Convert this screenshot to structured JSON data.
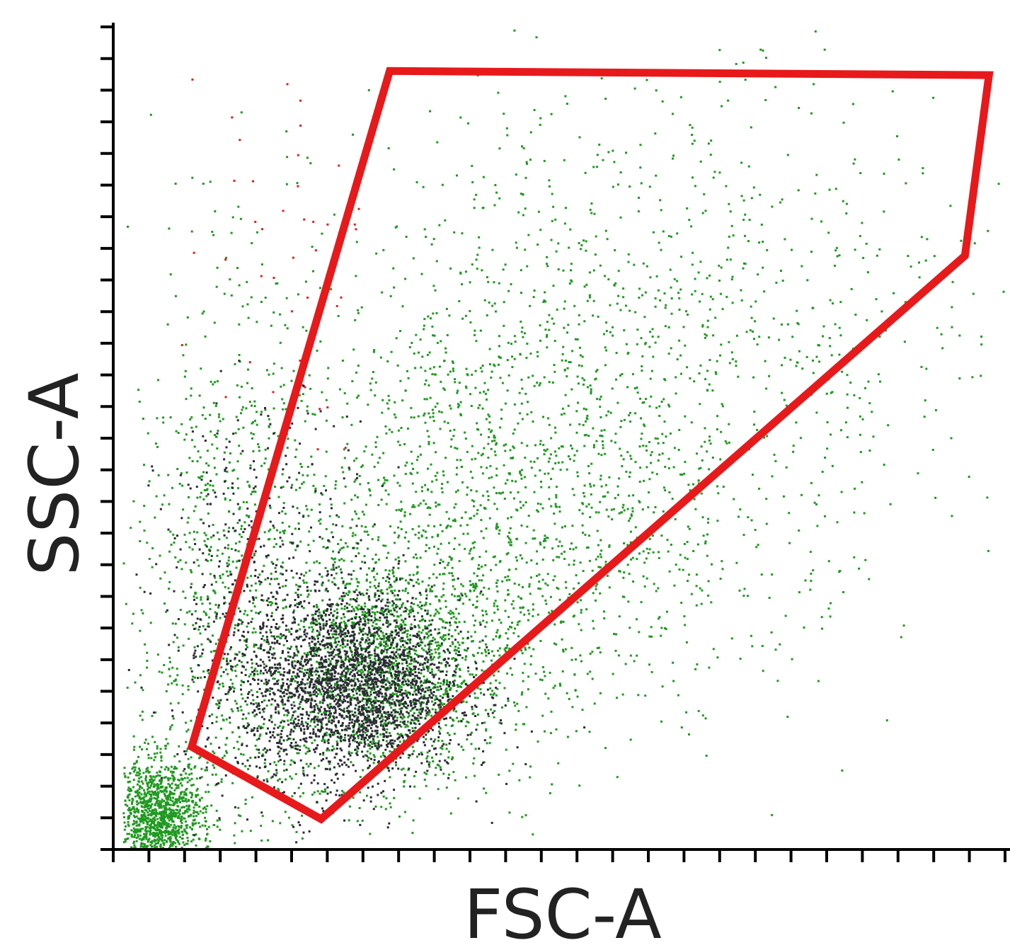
{
  "chart_data": {
    "type": "scatter",
    "title": "",
    "xlabel": "FSC-A",
    "ylabel": "SSC-A",
    "x_tick_marks": 26,
    "y_tick_marks": 27,
    "grid": false,
    "legend": "none",
    "series": [
      {
        "color": "#1f9a1f",
        "clusters": [
          {
            "cx": 0.3,
            "cy": 0.22,
            "sx": 0.07,
            "sy": 0.07,
            "n": 1700
          },
          {
            "cx": 0.42,
            "cy": 0.4,
            "sx": 0.14,
            "sy": 0.14,
            "n": 1500
          },
          {
            "cx": 0.6,
            "cy": 0.62,
            "sx": 0.18,
            "sy": 0.16,
            "n": 1000
          },
          {
            "cx": 0.05,
            "cy": 0.04,
            "sx": 0.025,
            "sy": 0.035,
            "n": 1300
          },
          {
            "cx": 0.12,
            "cy": 0.3,
            "sx": 0.05,
            "sy": 0.2,
            "n": 800
          }
        ]
      },
      {
        "color": "#2b2b33",
        "clusters": [
          {
            "cx": 0.27,
            "cy": 0.2,
            "sx": 0.06,
            "sy": 0.055,
            "n": 2400
          },
          {
            "cx": 0.17,
            "cy": 0.3,
            "sx": 0.06,
            "sy": 0.12,
            "n": 500
          }
        ]
      },
      {
        "color": "#e02020",
        "clusters": [
          {
            "cx": 0.18,
            "cy": 0.75,
            "sx": 0.05,
            "sy": 0.12,
            "n": 40
          }
        ]
      }
    ],
    "gate": {
      "color": "#e8191b",
      "vertices": [
        [
          0.31,
          0.948
        ],
        [
          0.982,
          0.943
        ],
        [
          0.955,
          0.723
        ],
        [
          0.233,
          0.037
        ],
        [
          0.088,
          0.125
        ]
      ]
    }
  }
}
